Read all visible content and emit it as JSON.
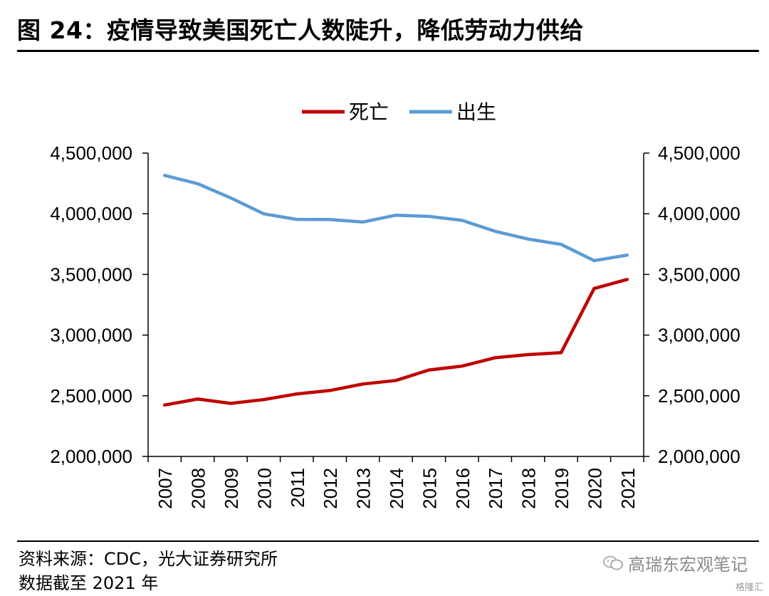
{
  "page": {
    "title": "图 24：疫情导致美国死亡人数陡升，降低劳动力供给",
    "source": "资料来源：CDC，光大证券研究所",
    "note": "数据截至 2021 年",
    "watermark": "高瑞东宏观笔记",
    "watermark_badge": "格隆汇"
  },
  "chart_data": {
    "type": "line",
    "title": "",
    "xlabel": "",
    "ylabel": "",
    "categories": [
      "2007",
      "2008",
      "2009",
      "2010",
      "2011",
      "2012",
      "2013",
      "2014",
      "2015",
      "2016",
      "2017",
      "2018",
      "2019",
      "2020",
      "2021"
    ],
    "ylim": [
      2000000,
      4500000
    ],
    "yticks": [
      "2,000,000",
      "2,500,000",
      "3,000,000",
      "3,500,000",
      "4,000,000",
      "4,500,000"
    ],
    "y2ticks": [
      "2,000,000",
      "2,500,000",
      "3,000,000",
      "3,500,000",
      "4,000,000",
      "4,500,000"
    ],
    "legend_position": "top-center",
    "grid": false,
    "series": [
      {
        "name": "死亡",
        "color": "#c00000",
        "values": [
          2423712,
          2473018,
          2437163,
          2468435,
          2515458,
          2543279,
          2596993,
          2626418,
          2712630,
          2744248,
          2813503,
          2839205,
          2854838,
          3383729,
          3458697
        ]
      },
      {
        "name": "出生",
        "color": "#5b9bd5",
        "values": [
          4316233,
          4247694,
          4130665,
          3999386,
          3953590,
          3952841,
          3932181,
          3988076,
          3978497,
          3945875,
          3855500,
          3791712,
          3747540,
          3613647,
          3659289
        ]
      }
    ]
  }
}
